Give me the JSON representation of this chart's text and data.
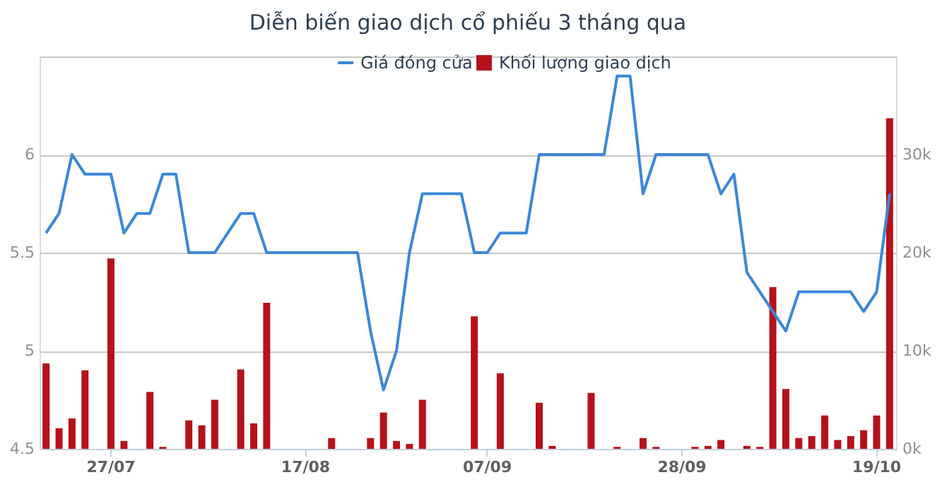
{
  "chart_data": {
    "type": "bar",
    "title": "Diễn biến giao dịch cổ phiếu 3 tháng qua",
    "categories": [
      null,
      null,
      null,
      null,
      null,
      "27/07",
      null,
      null,
      null,
      null,
      null,
      null,
      null,
      null,
      null,
      null,
      null,
      null,
      null,
      null,
      "17/08",
      null,
      null,
      null,
      null,
      null,
      null,
      null,
      null,
      null,
      null,
      null,
      null,
      null,
      "07/09",
      null,
      null,
      null,
      null,
      null,
      null,
      null,
      null,
      null,
      null,
      null,
      null,
      null,
      null,
      "28/09",
      null,
      null,
      null,
      null,
      null,
      null,
      null,
      null,
      null,
      null,
      null,
      null,
      null,
      null,
      "19/10",
      null
    ],
    "series": [
      {
        "name": "Giá đóng cửa",
        "type": "line",
        "color": "#3a87d9",
        "values": [
          5.6,
          5.7,
          6.0,
          5.9,
          5.9,
          5.9,
          5.6,
          5.7,
          5.7,
          5.9,
          5.9,
          5.5,
          5.5,
          5.5,
          5.6,
          5.7,
          5.7,
          5.5,
          5.5,
          5.5,
          5.5,
          5.5,
          5.5,
          5.5,
          5.5,
          5.1,
          4.8,
          5.0,
          5.5,
          5.8,
          5.8,
          5.8,
          5.8,
          5.5,
          5.5,
          5.6,
          5.6,
          5.6,
          6.0,
          6.0,
          6.0,
          6.0,
          6.0,
          6.0,
          6.4,
          6.4,
          5.8,
          6.0,
          6.0,
          6.0,
          6.0,
          6.0,
          5.8,
          5.9,
          5.4,
          5.3,
          5.2,
          5.1,
          5.3,
          5.3,
          5.3,
          5.3,
          5.3,
          5.2,
          5.3,
          5.8
        ]
      },
      {
        "name": "Khối lượng giao dịch",
        "axis": "y2",
        "color": "#b5121b",
        "values": [
          8700,
          2100,
          3100,
          8000,
          0,
          19400,
          800,
          0,
          5800,
          200,
          0,
          2900,
          2400,
          5000,
          0,
          8100,
          2600,
          14900,
          0,
          0,
          0,
          0,
          1100,
          0,
          0,
          1100,
          3700,
          800,
          500,
          5000,
          0,
          0,
          0,
          13500,
          0,
          7700,
          0,
          0,
          4700,
          300,
          0,
          0,
          5700,
          0,
          200,
          0,
          1100,
          200,
          0,
          0,
          200,
          300,
          900,
          0,
          300,
          200,
          16500,
          6100,
          1100,
          1300,
          3400,
          900,
          1300,
          1900,
          3400,
          33700
        ]
      }
    ],
    "ylim": [
      4.5,
      6.5
    ],
    "yticks": [
      4.5,
      5,
      5.5,
      6,
      {
        "value": 6.5,
        "label": null
      }
    ],
    "y2lim": [
      0,
      40000
    ],
    "y2ticks": [
      {
        "value": 0,
        "label": "0k"
      },
      {
        "value": 10000,
        "label": "10k"
      },
      {
        "value": 20000,
        "label": "20k"
      },
      {
        "value": 30000,
        "label": "30k"
      },
      {
        "value": 40000,
        "label": null
      }
    ],
    "grid": "y",
    "legend": "top"
  }
}
